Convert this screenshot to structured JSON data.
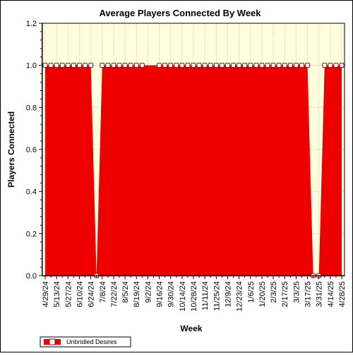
{
  "chart_data": {
    "type": "area",
    "title": "Average Players Connected By Week",
    "xlabel": "Week",
    "ylabel": "Players Connected",
    "ylim": [
      0,
      1.2
    ],
    "yticks": [
      "0.0",
      "0.2",
      "0.4",
      "0.6",
      "0.8",
      "1.0",
      "1.2"
    ],
    "ytick_values": [
      0,
      0.2,
      0.4,
      0.6,
      0.8,
      1.0,
      1.2
    ],
    "xtick_labels": [
      "4/29/24",
      "5/13/24",
      "5/27/24",
      "6/10/24",
      "6/24/24",
      "7/8/24",
      "7/22/24",
      "8/5/24",
      "8/19/24",
      "9/2/24",
      "9/16/24",
      "9/30/24",
      "10/14/24",
      "10/28/24",
      "11/11/24",
      "11/25/24",
      "12/9/24",
      "12/23/24",
      "1/6/25",
      "1/20/25",
      "2/3/25",
      "2/17/25",
      "3/3/25",
      "3/17/25",
      "3/31/25",
      "4/14/25",
      "4/28/25"
    ],
    "legend_position": "bottom-left",
    "grid": true,
    "colors": {
      "fill": "#ee0000",
      "plot_background": "#ffffe0",
      "marker_fill": "#ffffff",
      "marker_stroke": "#990000"
    },
    "series": [
      {
        "name": "Unbridled Desires",
        "x": [
          "4/29/24",
          "5/6/24",
          "5/13/24",
          "5/20/24",
          "5/27/24",
          "6/3/24",
          "6/10/24",
          "6/17/24",
          "6/24/24",
          "7/1/24",
          "7/8/24",
          "7/15/24",
          "7/22/24",
          "7/29/24",
          "8/5/24",
          "8/12/24",
          "8/19/24",
          "8/26/24",
          "9/2/24",
          "9/9/24",
          "9/16/24",
          "9/23/24",
          "9/30/24",
          "10/7/24",
          "10/14/24",
          "10/21/24",
          "10/28/24",
          "11/4/24",
          "11/11/24",
          "11/18/24",
          "11/25/24",
          "12/2/24",
          "12/9/24",
          "12/16/24",
          "12/23/24",
          "12/30/24",
          "1/6/25",
          "1/13/25",
          "1/20/25",
          "1/27/25",
          "2/3/25",
          "2/10/25",
          "2/17/25",
          "2/24/25",
          "3/3/25",
          "3/10/25",
          "3/17/25",
          "3/24/25",
          "3/31/25",
          "4/7/25",
          "4/14/25",
          "4/21/25",
          "4/28/25"
        ],
        "values": [
          1,
          1,
          1,
          1,
          1,
          1,
          1,
          1,
          1,
          0,
          1,
          1,
          1,
          1,
          1,
          1,
          1,
          1,
          1,
          1,
          1,
          1,
          1,
          1,
          1,
          1,
          1,
          1,
          1,
          1,
          1,
          1,
          1,
          1,
          1,
          1,
          1,
          1,
          1,
          1,
          1,
          1,
          1,
          1,
          1,
          1,
          1,
          0,
          0,
          1,
          1,
          1,
          1
        ],
        "markers": [
          true,
          true,
          true,
          true,
          true,
          true,
          true,
          true,
          true,
          true,
          true,
          true,
          true,
          true,
          true,
          true,
          true,
          true,
          false,
          false,
          true,
          true,
          true,
          true,
          true,
          true,
          true,
          true,
          true,
          true,
          true,
          true,
          true,
          true,
          true,
          true,
          true,
          true,
          true,
          true,
          true,
          true,
          true,
          true,
          true,
          true,
          true,
          true,
          true,
          true,
          true,
          true,
          true
        ]
      }
    ]
  }
}
